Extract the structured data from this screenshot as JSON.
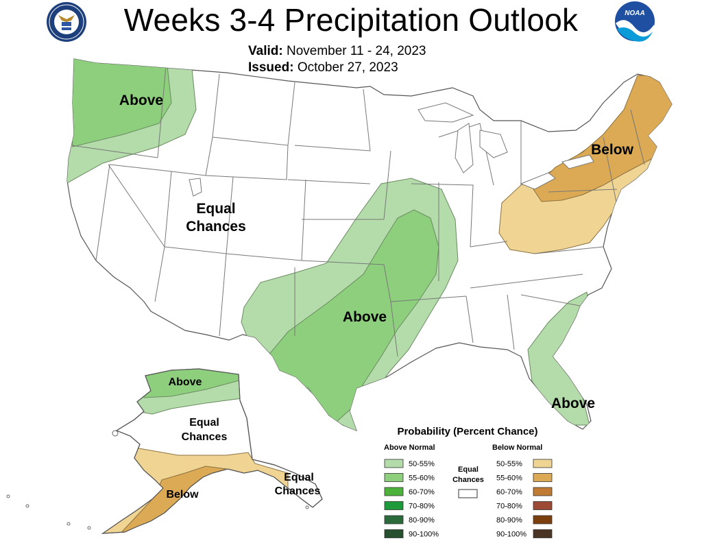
{
  "header": {
    "title": "Weeks 3-4 Precipitation Outlook",
    "valid_label": "Valid:",
    "valid_value": "November 11 - 24, 2023",
    "issued_label": "Issued:",
    "issued_value": "October 27, 2023"
  },
  "logos": {
    "left": "doc-seal-icon",
    "right": "noaa-logo-icon",
    "noaa_text": "NOAA"
  },
  "regions": {
    "northwest": "Above",
    "west": [
      "Equal",
      "Chances"
    ],
    "south_central": "Above",
    "northeast": "Below",
    "southeast": "Above",
    "alaska_north": "Above",
    "alaska_center": [
      "Equal",
      "Chances"
    ],
    "alaska_south": "Below",
    "panhandle": [
      "Equal",
      "Chances"
    ]
  },
  "legend": {
    "title": "Probability (Percent Chance)",
    "above_header": "Above Normal",
    "below_header": "Below Normal",
    "equal_label": [
      "Equal",
      "Chances"
    ],
    "above": [
      {
        "label": "50-55%",
        "color": "#b3dcaa"
      },
      {
        "label": "55-60%",
        "color": "#8ecf7e"
      },
      {
        "label": "60-70%",
        "color": "#4cb23c"
      },
      {
        "label": "70-80%",
        "color": "#1d9a3a"
      },
      {
        "label": "80-90%",
        "color": "#2b6a3a"
      },
      {
        "label": "90-100%",
        "color": "#27502f"
      }
    ],
    "below": [
      {
        "label": "50-55%",
        "color": "#f0d494"
      },
      {
        "label": "55-60%",
        "color": "#dcaa55"
      },
      {
        "label": "60-70%",
        "color": "#bf7a34"
      },
      {
        "label": "70-80%",
        "color": "#9c4a34"
      },
      {
        "label": "80-90%",
        "color": "#7a3f0c"
      },
      {
        "label": "90-100%",
        "color": "#4a3424"
      }
    ]
  }
}
